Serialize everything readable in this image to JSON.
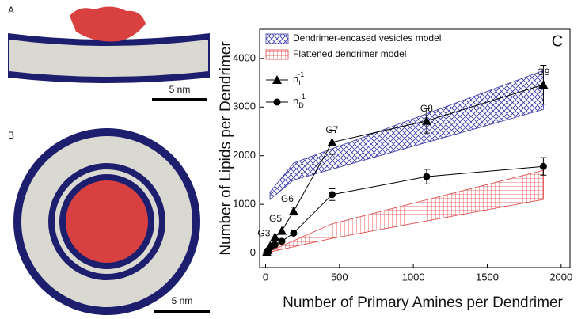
{
  "panels": {
    "a": {
      "label": "A",
      "scale": "5 nm"
    },
    "b": {
      "label": "B",
      "scale": "5 nm"
    }
  },
  "chart_data": {
    "type": "line",
    "panel_label": "C",
    "xlabel": "Number of Primary Amines per Dendrimer",
    "ylabel": "Number of Lipids per Dendrimer",
    "xlim": [
      -40,
      2060
    ],
    "xticks": [
      0,
      500,
      1000,
      1500,
      2000
    ],
    "ylim": [
      -300,
      4600
    ],
    "yticks": [
      0,
      1000,
      2000,
      3000,
      4000
    ],
    "bands": [
      {
        "name": "Dendrimer-encased vesicles model",
        "color": "#3a3aa8",
        "pattern": "crosshatch",
        "x": [
          30,
          190,
          1880
        ],
        "lower": [
          1100,
          1500,
          2950
        ],
        "upper": [
          1250,
          1850,
          3750
        ]
      },
      {
        "name": "Flattened dendrimer model",
        "color": "#e04040",
        "pattern": "grid",
        "x": [
          0,
          450,
          1880
        ],
        "lower": [
          0,
          300,
          1100
        ],
        "upper": [
          0,
          600,
          1700
        ]
      }
    ],
    "series": [
      {
        "name": "n",
        "subscript": "L",
        "superscript": "-1",
        "marker": "triangle",
        "color": "#000",
        "x": [
          8,
          16,
          32,
          64,
          110,
          190,
          450,
          1090,
          1880
        ],
        "values": [
          20,
          60,
          150,
          330,
          455,
          860,
          2275,
          2715,
          3460
        ],
        "errors": [
          null,
          null,
          null,
          null,
          null,
          80,
          250,
          250,
          400
        ],
        "point_labels": [
          null,
          null,
          "G3",
          null,
          "G5",
          "G6",
          "G7",
          "G8",
          "G9"
        ]
      },
      {
        "name": "n",
        "subscript": "D",
        "superscript": "-1",
        "marker": "circle",
        "color": "#000",
        "x": [
          8,
          16,
          32,
          64,
          110,
          190,
          450,
          1090,
          1880
        ],
        "values": [
          10,
          50,
          120,
          170,
          240,
          410,
          1200,
          1570,
          1780
        ],
        "errors": [
          null,
          null,
          null,
          null,
          null,
          null,
          120,
          150,
          180
        ]
      }
    ]
  }
}
